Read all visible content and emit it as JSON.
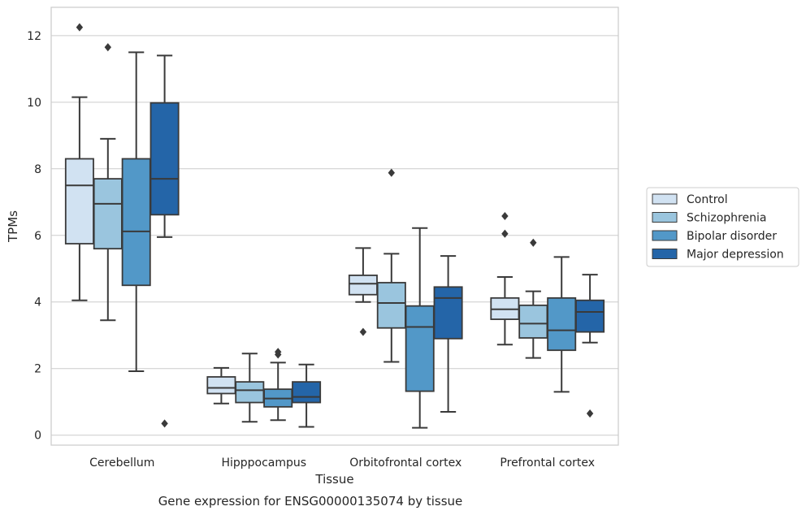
{
  "chart_data": {
    "type": "box",
    "xlabel": "Tissue",
    "ylabel": "TPMs",
    "caption": "Gene expression for ENSG00000135074 by tissue",
    "ylim": [
      -0.3,
      12.85
    ],
    "yticks": [
      0,
      2,
      4,
      6,
      8,
      10,
      12
    ],
    "grid": "horizontal",
    "legend_position": "right",
    "categories": [
      "Cerebellum",
      "Hipppocampus",
      "Orbitofrontal cortex",
      "Prefrontal cortex"
    ],
    "series": [
      {
        "name": "Control",
        "color": "#d1e2f2",
        "boxes": [
          {
            "whislo": 4.05,
            "q1": 5.75,
            "med": 7.5,
            "q3": 8.3,
            "whishi": 10.15,
            "fliers": [
              12.25
            ]
          },
          {
            "whislo": 0.95,
            "q1": 1.25,
            "med": 1.42,
            "q3": 1.75,
            "whishi": 2.02,
            "fliers": []
          },
          {
            "whislo": 4.0,
            "q1": 4.22,
            "med": 4.55,
            "q3": 4.8,
            "whishi": 5.62,
            "fliers": [
              3.1
            ]
          },
          {
            "whislo": 2.72,
            "q1": 3.48,
            "med": 3.78,
            "q3": 4.12,
            "whishi": 4.75,
            "fliers": [
              6.05,
              6.58
            ]
          }
        ]
      },
      {
        "name": "Schizophrenia",
        "color": "#9ac5de",
        "boxes": [
          {
            "whislo": 3.45,
            "q1": 5.6,
            "med": 6.95,
            "q3": 7.7,
            "whishi": 8.9,
            "fliers": [
              11.65
            ]
          },
          {
            "whislo": 0.4,
            "q1": 0.98,
            "med": 1.35,
            "q3": 1.6,
            "whishi": 2.45,
            "fliers": []
          },
          {
            "whislo": 2.2,
            "q1": 3.22,
            "med": 3.97,
            "q3": 4.58,
            "whishi": 5.45,
            "fliers": [
              7.88
            ]
          },
          {
            "whislo": 2.32,
            "q1": 2.92,
            "med": 3.35,
            "q3": 3.9,
            "whishi": 4.32,
            "fliers": [
              5.78
            ]
          }
        ]
      },
      {
        "name": "Bipolar disorder",
        "color": "#5298c8",
        "boxes": [
          {
            "whislo": 1.92,
            "q1": 4.5,
            "med": 6.12,
            "q3": 8.3,
            "whishi": 11.5,
            "fliers": []
          },
          {
            "whislo": 0.45,
            "q1": 0.85,
            "med": 1.1,
            "q3": 1.38,
            "whishi": 2.18,
            "fliers": [
              2.42,
              2.5
            ]
          },
          {
            "whislo": 0.22,
            "q1": 1.32,
            "med": 3.25,
            "q3": 3.88,
            "whishi": 6.22,
            "fliers": []
          },
          {
            "whislo": 1.3,
            "q1": 2.55,
            "med": 3.15,
            "q3": 4.12,
            "whishi": 5.35,
            "fliers": []
          }
        ]
      },
      {
        "name": "Major depression",
        "color": "#2465a8",
        "boxes": [
          {
            "whislo": 5.95,
            "q1": 6.62,
            "med": 7.7,
            "q3": 9.98,
            "whishi": 11.4,
            "fliers": [
              0.35
            ]
          },
          {
            "whislo": 0.25,
            "q1": 0.98,
            "med": 1.15,
            "q3": 1.6,
            "whishi": 2.12,
            "fliers": []
          },
          {
            "whislo": 0.7,
            "q1": 2.9,
            "med": 4.12,
            "q3": 4.45,
            "whishi": 5.38,
            "fliers": []
          },
          {
            "whislo": 2.78,
            "q1": 3.1,
            "med": 3.7,
            "q3": 4.05,
            "whishi": 4.82,
            "fliers": [
              0.65
            ]
          }
        ]
      }
    ]
  }
}
